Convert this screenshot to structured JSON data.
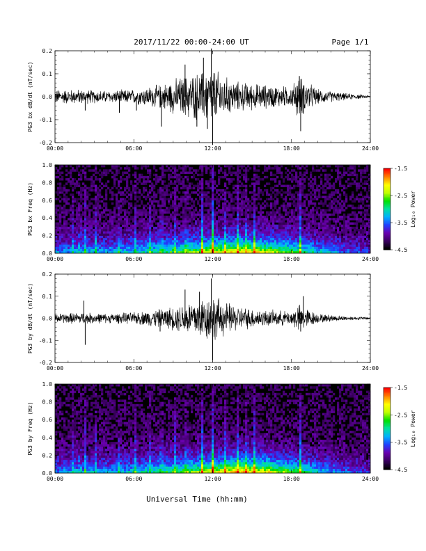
{
  "header": {
    "title": "2017/11/22  00:00-24:00 UT",
    "page_label": "Page 1/1"
  },
  "footer": {
    "xlabel": "Universal Time (hh:mm)"
  },
  "colors": {
    "trace": "#000000",
    "spectrogram_background": "#000000",
    "colormap": [
      "#000000",
      "#3a0060",
      "#6a00b0",
      "#2040ff",
      "#00b0ff",
      "#00e0a0",
      "#00e000",
      "#c0ff00",
      "#ffff00",
      "#ff8000",
      "#ff0000"
    ]
  },
  "chart_data": [
    {
      "type": "line",
      "ylabel": "PG3 bx dB/dt (nT/sec)",
      "ylim": [
        -0.2,
        0.2
      ],
      "yticks": [
        "0.2",
        "0.1",
        "0.0",
        "-0.1",
        "-0.2"
      ],
      "xticks": [
        "00:00",
        "06:00",
        "12:00",
        "18:00",
        "24:00"
      ],
      "x_range_hours": [
        0,
        24
      ],
      "series": [
        {
          "envelope_hours": [
            0,
            2,
            4,
            6,
            8,
            9,
            10,
            11,
            12,
            13,
            14,
            16,
            18,
            18.5,
            20,
            22,
            24
          ],
          "envelope_amp": [
            0.03,
            0.03,
            0.025,
            0.03,
            0.05,
            0.07,
            0.09,
            0.1,
            0.12,
            0.08,
            0.06,
            0.05,
            0.04,
            0.09,
            0.03,
            0.015,
            0.005
          ]
        }
      ],
      "spikes": [
        {
          "x": 2.3,
          "y": -0.06
        },
        {
          "x": 4.9,
          "y": -0.07
        },
        {
          "x": 6.2,
          "y": -0.06
        },
        {
          "x": 8.1,
          "y": -0.13
        },
        {
          "x": 10.8,
          "y": -0.13
        },
        {
          "x": 11.6,
          "y": -0.14
        },
        {
          "x": 11.9,
          "y": 0.21
        },
        {
          "x": 12.0,
          "y": -0.21
        },
        {
          "x": 18.7,
          "y": -0.15
        },
        {
          "x": 18.6,
          "y": 0.09
        },
        {
          "x": 9.9,
          "y": 0.14
        },
        {
          "x": 11.3,
          "y": 0.17
        }
      ]
    },
    {
      "type": "heatmap",
      "ylabel": "PG3 bx Freq (Hz)",
      "ylim": [
        0.0,
        1.0
      ],
      "yticks": [
        "1.0",
        "0.8",
        "0.6",
        "0.4",
        "0.2",
        "0.0"
      ],
      "xticks": [
        "00:00",
        "06:00",
        "12:00",
        "18:00",
        "24:00"
      ],
      "colorbar": {
        "label": "Log₁₀ Power",
        "range": [
          -4.5,
          -1.5
        ],
        "ticks": [
          "-1.5",
          "-2.5",
          "-3.5",
          "-4.5"
        ]
      },
      "activity_hours": [
        0,
        2,
        4,
        6,
        8,
        10,
        12,
        14,
        16,
        18,
        20,
        22,
        24
      ],
      "activity_level": [
        0.3,
        0.35,
        0.35,
        0.4,
        0.5,
        0.6,
        0.75,
        0.8,
        0.75,
        0.6,
        0.4,
        0.25,
        0.15
      ],
      "bursts_hours": [
        1.4,
        1.9,
        2.3,
        3.1,
        4.9,
        6.1,
        7.2,
        8.1,
        9.1,
        10.0,
        11.2,
        12.0,
        13.0,
        13.9,
        14.6,
        15.2,
        18.7
      ],
      "bursts_strength": [
        0.5,
        0.4,
        0.5,
        0.4,
        0.5,
        0.5,
        0.5,
        0.6,
        0.6,
        0.7,
        0.8,
        1.0,
        0.8,
        0.7,
        0.7,
        0.8,
        0.9
      ]
    },
    {
      "type": "line",
      "ylabel": "PG3 by dB/dt (nT/sec)",
      "ylim": [
        -0.2,
        0.2
      ],
      "yticks": [
        "0.2",
        "0.1",
        "0.0",
        "-0.1",
        "-0.2"
      ],
      "xticks": [
        "00:00",
        "06:00",
        "12:00",
        "18:00",
        "24:00"
      ],
      "x_range_hours": [
        0,
        24
      ],
      "series": [
        {
          "envelope_hours": [
            0,
            2,
            4,
            6,
            8,
            9,
            10,
            11,
            12,
            13,
            14,
            16,
            18,
            18.5,
            20,
            22,
            24
          ],
          "envelope_amp": [
            0.02,
            0.025,
            0.02,
            0.025,
            0.04,
            0.05,
            0.07,
            0.09,
            0.1,
            0.07,
            0.05,
            0.035,
            0.03,
            0.06,
            0.02,
            0.01,
            0.005
          ]
        }
      ],
      "spikes": [
        {
          "x": 2.2,
          "y": 0.08
        },
        {
          "x": 2.3,
          "y": -0.12
        },
        {
          "x": 9.9,
          "y": 0.13
        },
        {
          "x": 11.0,
          "y": 0.12
        },
        {
          "x": 11.9,
          "y": 0.18
        },
        {
          "x": 12.0,
          "y": -0.19
        },
        {
          "x": 18.9,
          "y": 0.1
        },
        {
          "x": 18.7,
          "y": -0.06
        },
        {
          "x": 8.0,
          "y": -0.06
        }
      ]
    },
    {
      "type": "heatmap",
      "ylabel": "PG3 by Freq (Hz)",
      "ylim": [
        0.0,
        1.0
      ],
      "yticks": [
        "1.0",
        "0.8",
        "0.6",
        "0.4",
        "0.2",
        "0.0"
      ],
      "xticks": [
        "00:00",
        "06:00",
        "12:00",
        "18:00",
        "24:00"
      ],
      "colorbar": {
        "label": "Log₁₀ Power",
        "range": [
          -4.5,
          -1.5
        ],
        "ticks": [
          "-1.5",
          "-2.5",
          "-3.5",
          "-4.5"
        ]
      },
      "activity_hours": [
        0,
        2,
        4,
        6,
        8,
        10,
        12,
        14,
        16,
        18,
        20,
        22,
        24
      ],
      "activity_level": [
        0.3,
        0.35,
        0.35,
        0.4,
        0.5,
        0.6,
        0.75,
        0.85,
        0.8,
        0.6,
        0.4,
        0.25,
        0.15
      ],
      "bursts_hours": [
        1.4,
        1.9,
        2.3,
        3.1,
        4.9,
        6.1,
        7.2,
        8.1,
        9.1,
        10.0,
        11.2,
        12.0,
        13.0,
        13.9,
        14.6,
        15.2,
        18.7
      ],
      "bursts_strength": [
        0.5,
        0.4,
        0.5,
        0.4,
        0.5,
        0.5,
        0.5,
        0.6,
        0.6,
        0.7,
        0.8,
        1.0,
        0.8,
        0.7,
        0.7,
        0.8,
        0.9
      ]
    }
  ]
}
